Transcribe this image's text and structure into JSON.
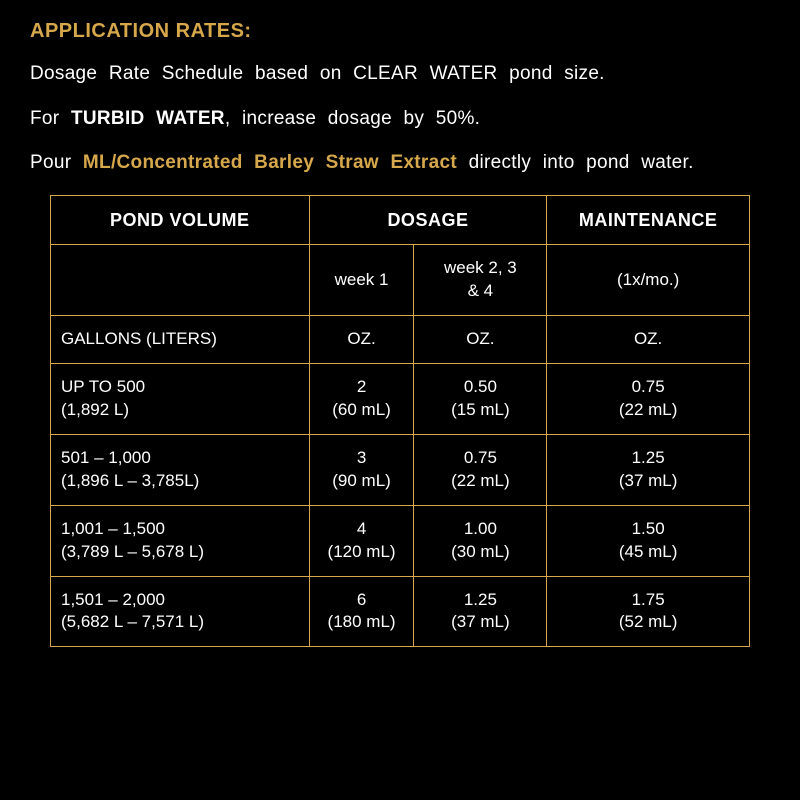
{
  "heading": "APPLICATION RATES:",
  "line1": {
    "a": "Dosage  Rate  Schedule  based  on  CLEAR  WATER pond size."
  },
  "line2": {
    "a": "For ",
    "b": "TURBID WATER",
    "c": ", increase dosage by 50%."
  },
  "line3": {
    "a": "Pour  ",
    "b": "ML/Concentrated  Barley  Straw  Extract",
    "c": " directly into pond water."
  },
  "table": {
    "headers": {
      "pond_volume": "POND VOLUME",
      "dosage": "DOSAGE",
      "maintenance": "MAINTENANCE"
    },
    "subheaders": {
      "blank": "",
      "week1": "week 1",
      "week234": "week 2, 3\n& 4",
      "maint": "(1x/mo.)"
    },
    "units": {
      "vol": "GALLONS (LITERS)",
      "w1": "OZ.",
      "w234": "OZ.",
      "m": "OZ."
    },
    "rows": [
      {
        "vol": "UP TO 500\n(1,892 L)",
        "w1": "2\n(60 mL)",
        "w234": "0.50\n(15 mL)",
        "m": "0.75\n(22 mL)"
      },
      {
        "vol": "501 – 1,000\n(1,896 L – 3,785L)",
        "w1": "3\n(90 mL)",
        "w234": "0.75\n(22 mL)",
        "m": "1.25\n(37 mL)"
      },
      {
        "vol": "1,001 – 1,500\n(3,789 L – 5,678 L)",
        "w1": "4\n(120 mL)",
        "w234": "1.00\n(30 mL)",
        "m": "1.50\n(45 mL)"
      },
      {
        "vol": "1,501 – 2,000\n(5,682 L – 7,571 L)",
        "w1": "6\n(180 mL)",
        "w234": "1.25\n(37 mL)",
        "m": "1.75\n(52 mL)"
      }
    ]
  },
  "colors": {
    "background": "#000000",
    "text": "#ffffff",
    "accent": "#d6a84b",
    "border": "#d6a84b"
  }
}
